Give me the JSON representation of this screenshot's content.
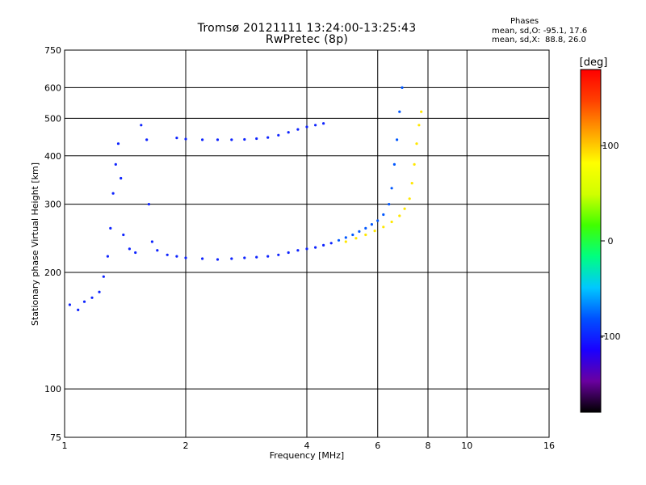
{
  "title_line1": "Tromsø 20121111 13:24:00-13:25:43",
  "title_line2": "RwPretec (8p)",
  "phases": {
    "heading": "Phases",
    "o_mode": "mean, sd,O: -95.1, 17.6",
    "x_mode": "mean, sd,X:  88.8, 26.0"
  },
  "colorbar": {
    "label": "[deg]",
    "ticks": [
      {
        "value": 100,
        "label": "100"
      },
      {
        "value": 0,
        "label": "0"
      },
      {
        "value": -100,
        "label": "-100"
      }
    ],
    "range": [
      -180,
      180
    ],
    "colors": [
      "#000000",
      "#6a00a0",
      "#1a00ff",
      "#0050ff",
      "#00c8ff",
      "#00ff80",
      "#40ff00",
      "#d0ff00",
      "#ffff00",
      "#ffa000",
      "#ff4000",
      "#ff0000"
    ]
  },
  "chart_data": {
    "type": "scatter",
    "xlabel": "Frequency [MHz]",
    "ylabel": "Stationary phase Virtual Height [km]",
    "x_scale": "log",
    "y_scale": "log",
    "xlim": [
      1,
      16
    ],
    "ylim": [
      75,
      750
    ],
    "xticks": [
      1,
      2,
      4,
      6,
      8,
      10,
      16
    ],
    "yticks": [
      75,
      100,
      200,
      300,
      400,
      500,
      600,
      750
    ],
    "grid": true,
    "series": [
      {
        "mode": "O",
        "phase_deg": -100,
        "points": [
          [
            1.03,
            165
          ],
          [
            1.08,
            160
          ],
          [
            1.12,
            168
          ],
          [
            1.17,
            172
          ],
          [
            1.22,
            178
          ],
          [
            1.25,
            195
          ],
          [
            1.28,
            220
          ],
          [
            1.3,
            260
          ],
          [
            1.32,
            320
          ],
          [
            1.34,
            380
          ],
          [
            1.36,
            430
          ],
          [
            1.38,
            350
          ],
          [
            1.4,
            250
          ],
          [
            1.45,
            230
          ],
          [
            1.5,
            225
          ],
          [
            1.55,
            480
          ],
          [
            1.6,
            440
          ],
          [
            1.62,
            300
          ],
          [
            1.65,
            240
          ],
          [
            1.7,
            228
          ],
          [
            1.8,
            222
          ],
          [
            1.9,
            220
          ],
          [
            2.0,
            218
          ],
          [
            2.2,
            217
          ],
          [
            2.4,
            216
          ],
          [
            2.6,
            217
          ],
          [
            2.8,
            218
          ],
          [
            3.0,
            219
          ],
          [
            3.2,
            220
          ],
          [
            3.4,
            222
          ],
          [
            3.6,
            225
          ],
          [
            3.8,
            228
          ],
          [
            4.0,
            230
          ],
          [
            4.2,
            232
          ],
          [
            4.4,
            235
          ],
          [
            4.6,
            238
          ],
          [
            1.9,
            445
          ],
          [
            2.0,
            442
          ],
          [
            2.2,
            440
          ],
          [
            2.4,
            440
          ],
          [
            2.6,
            440
          ],
          [
            2.8,
            441
          ],
          [
            3.0,
            443
          ],
          [
            3.2,
            446
          ],
          [
            3.4,
            452
          ],
          [
            3.6,
            460
          ],
          [
            3.8,
            468
          ],
          [
            4.0,
            475
          ],
          [
            4.2,
            480
          ],
          [
            4.4,
            485
          ]
        ]
      },
      {
        "mode": "O",
        "phase_deg": -80,
        "points": [
          [
            4.8,
            242
          ],
          [
            5.0,
            246
          ],
          [
            5.2,
            250
          ],
          [
            5.4,
            255
          ],
          [
            5.6,
            260
          ],
          [
            5.8,
            266
          ],
          [
            6.0,
            272
          ],
          [
            6.2,
            282
          ],
          [
            6.4,
            300
          ],
          [
            6.5,
            330
          ],
          [
            6.6,
            380
          ],
          [
            6.7,
            440
          ],
          [
            6.8,
            520
          ],
          [
            6.9,
            600
          ]
        ]
      },
      {
        "mode": "X",
        "phase_deg": 90,
        "points": [
          [
            5.0,
            240
          ],
          [
            5.3,
            245
          ],
          [
            5.6,
            250
          ],
          [
            5.9,
            256
          ],
          [
            6.2,
            262
          ],
          [
            6.5,
            270
          ],
          [
            6.8,
            280
          ],
          [
            7.0,
            292
          ],
          [
            7.2,
            310
          ],
          [
            7.3,
            340
          ],
          [
            7.4,
            380
          ],
          [
            7.5,
            430
          ],
          [
            7.6,
            480
          ],
          [
            7.7,
            520
          ]
        ]
      }
    ]
  }
}
